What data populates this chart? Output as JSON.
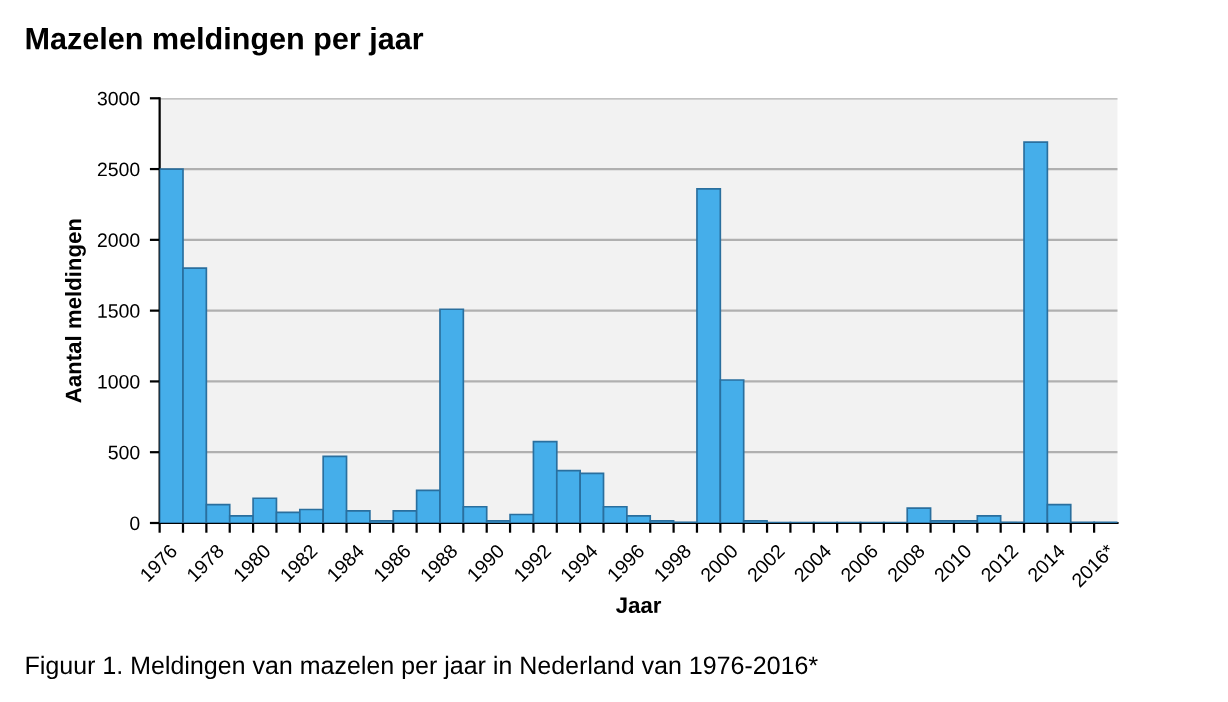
{
  "chart_data": {
    "type": "bar",
    "title": "Mazelen meldingen per jaar",
    "xlabel": "Jaar",
    "ylabel": "Aantal meldingen",
    "categories": [
      "1976",
      null,
      "1978",
      null,
      "1980",
      null,
      "1982",
      null,
      "1984",
      null,
      "1986",
      null,
      "1988",
      null,
      "1990",
      null,
      "1992",
      null,
      "1994",
      null,
      "1996",
      null,
      "1998",
      null,
      "2000",
      null,
      "2002",
      null,
      "2004",
      null,
      "2006",
      null,
      "2008",
      null,
      "2010",
      null,
      "2012",
      null,
      "2014",
      null,
      "2016*"
    ],
    "values": [
      2500,
      1800,
      130,
      50,
      175,
      75,
      95,
      470,
      85,
      15,
      85,
      230,
      1510,
      115,
      15,
      60,
      575,
      370,
      350,
      115,
      50,
      15,
      5,
      2360,
      1010,
      15,
      3,
      3,
      3,
      3,
      3,
      3,
      105,
      15,
      15,
      50,
      5,
      2690,
      130,
      5,
      5
    ],
    "color": "#45aeea",
    "ylim": [
      0,
      3000
    ],
    "yticks": [
      0,
      500,
      1000,
      1500,
      2000,
      2500,
      3000
    ],
    "grid": "y",
    "annotations": [
      "Figuur 1. Meldingen van mazelen per jaar in Nederland van 1976-2016*"
    ]
  }
}
